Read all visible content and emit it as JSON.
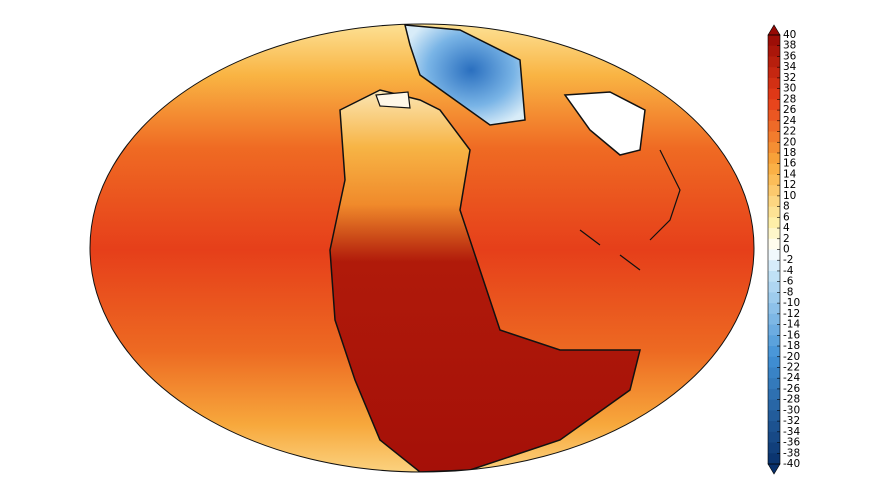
{
  "colorbar": {
    "ticks": [
      40,
      38,
      36,
      34,
      32,
      30,
      28,
      26,
      24,
      22,
      20,
      18,
      16,
      14,
      12,
      10,
      8,
      6,
      4,
      2,
      0,
      -2,
      -4,
      -6,
      -8,
      -10,
      -12,
      -14,
      -16,
      -18,
      -20,
      -22,
      -24,
      -26,
      -28,
      -30,
      -32,
      -34,
      -36,
      -38,
      -40
    ],
    "lim": [
      -40,
      40
    ]
  }
}
